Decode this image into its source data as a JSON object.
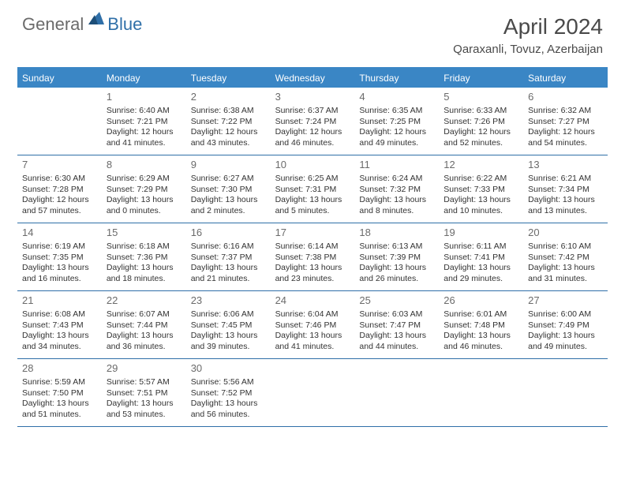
{
  "logo": {
    "part1": "General",
    "part2": "Blue"
  },
  "title": "April 2024",
  "location": "Qaraxanli, Tovuz, Azerbaijan",
  "colors": {
    "header_bg": "#3a86c5",
    "header_text": "#ffffff",
    "rule": "#2f6fa8",
    "text": "#333333",
    "daynum": "#6b6b6b",
    "logo_gray": "#6b6b6b",
    "logo_blue": "#2f6fa8",
    "background": "#ffffff"
  },
  "typography": {
    "title_fontsize": 28,
    "location_fontsize": 15,
    "dayhead_fontsize": 12,
    "daynum_fontsize": 13,
    "body_fontsize": 10.5
  },
  "weekdays": [
    "Sunday",
    "Monday",
    "Tuesday",
    "Wednesday",
    "Thursday",
    "Friday",
    "Saturday"
  ],
  "weeks": [
    [
      null,
      {
        "d": "1",
        "sr": "6:40 AM",
        "ss": "7:21 PM",
        "dl1": "12 hours",
        "dl2": "and 41 minutes."
      },
      {
        "d": "2",
        "sr": "6:38 AM",
        "ss": "7:22 PM",
        "dl1": "12 hours",
        "dl2": "and 43 minutes."
      },
      {
        "d": "3",
        "sr": "6:37 AM",
        "ss": "7:24 PM",
        "dl1": "12 hours",
        "dl2": "and 46 minutes."
      },
      {
        "d": "4",
        "sr": "6:35 AM",
        "ss": "7:25 PM",
        "dl1": "12 hours",
        "dl2": "and 49 minutes."
      },
      {
        "d": "5",
        "sr": "6:33 AM",
        "ss": "7:26 PM",
        "dl1": "12 hours",
        "dl2": "and 52 minutes."
      },
      {
        "d": "6",
        "sr": "6:32 AM",
        "ss": "7:27 PM",
        "dl1": "12 hours",
        "dl2": "and 54 minutes."
      }
    ],
    [
      {
        "d": "7",
        "sr": "6:30 AM",
        "ss": "7:28 PM",
        "dl1": "12 hours",
        "dl2": "and 57 minutes."
      },
      {
        "d": "8",
        "sr": "6:29 AM",
        "ss": "7:29 PM",
        "dl1": "13 hours",
        "dl2": "and 0 minutes."
      },
      {
        "d": "9",
        "sr": "6:27 AM",
        "ss": "7:30 PM",
        "dl1": "13 hours",
        "dl2": "and 2 minutes."
      },
      {
        "d": "10",
        "sr": "6:25 AM",
        "ss": "7:31 PM",
        "dl1": "13 hours",
        "dl2": "and 5 minutes."
      },
      {
        "d": "11",
        "sr": "6:24 AM",
        "ss": "7:32 PM",
        "dl1": "13 hours",
        "dl2": "and 8 minutes."
      },
      {
        "d": "12",
        "sr": "6:22 AM",
        "ss": "7:33 PM",
        "dl1": "13 hours",
        "dl2": "and 10 minutes."
      },
      {
        "d": "13",
        "sr": "6:21 AM",
        "ss": "7:34 PM",
        "dl1": "13 hours",
        "dl2": "and 13 minutes."
      }
    ],
    [
      {
        "d": "14",
        "sr": "6:19 AM",
        "ss": "7:35 PM",
        "dl1": "13 hours",
        "dl2": "and 16 minutes."
      },
      {
        "d": "15",
        "sr": "6:18 AM",
        "ss": "7:36 PM",
        "dl1": "13 hours",
        "dl2": "and 18 minutes."
      },
      {
        "d": "16",
        "sr": "6:16 AM",
        "ss": "7:37 PM",
        "dl1": "13 hours",
        "dl2": "and 21 minutes."
      },
      {
        "d": "17",
        "sr": "6:14 AM",
        "ss": "7:38 PM",
        "dl1": "13 hours",
        "dl2": "and 23 minutes."
      },
      {
        "d": "18",
        "sr": "6:13 AM",
        "ss": "7:39 PM",
        "dl1": "13 hours",
        "dl2": "and 26 minutes."
      },
      {
        "d": "19",
        "sr": "6:11 AM",
        "ss": "7:41 PM",
        "dl1": "13 hours",
        "dl2": "and 29 minutes."
      },
      {
        "d": "20",
        "sr": "6:10 AM",
        "ss": "7:42 PM",
        "dl1": "13 hours",
        "dl2": "and 31 minutes."
      }
    ],
    [
      {
        "d": "21",
        "sr": "6:08 AM",
        "ss": "7:43 PM",
        "dl1": "13 hours",
        "dl2": "and 34 minutes."
      },
      {
        "d": "22",
        "sr": "6:07 AM",
        "ss": "7:44 PM",
        "dl1": "13 hours",
        "dl2": "and 36 minutes."
      },
      {
        "d": "23",
        "sr": "6:06 AM",
        "ss": "7:45 PM",
        "dl1": "13 hours",
        "dl2": "and 39 minutes."
      },
      {
        "d": "24",
        "sr": "6:04 AM",
        "ss": "7:46 PM",
        "dl1": "13 hours",
        "dl2": "and 41 minutes."
      },
      {
        "d": "25",
        "sr": "6:03 AM",
        "ss": "7:47 PM",
        "dl1": "13 hours",
        "dl2": "and 44 minutes."
      },
      {
        "d": "26",
        "sr": "6:01 AM",
        "ss": "7:48 PM",
        "dl1": "13 hours",
        "dl2": "and 46 minutes."
      },
      {
        "d": "27",
        "sr": "6:00 AM",
        "ss": "7:49 PM",
        "dl1": "13 hours",
        "dl2": "and 49 minutes."
      }
    ],
    [
      {
        "d": "28",
        "sr": "5:59 AM",
        "ss": "7:50 PM",
        "dl1": "13 hours",
        "dl2": "and 51 minutes."
      },
      {
        "d": "29",
        "sr": "5:57 AM",
        "ss": "7:51 PM",
        "dl1": "13 hours",
        "dl2": "and 53 minutes."
      },
      {
        "d": "30",
        "sr": "5:56 AM",
        "ss": "7:52 PM",
        "dl1": "13 hours",
        "dl2": "and 56 minutes."
      },
      null,
      null,
      null,
      null
    ]
  ],
  "labels": {
    "sunrise_prefix": "Sunrise: ",
    "sunset_prefix": "Sunset: ",
    "daylight_prefix": "Daylight: "
  }
}
